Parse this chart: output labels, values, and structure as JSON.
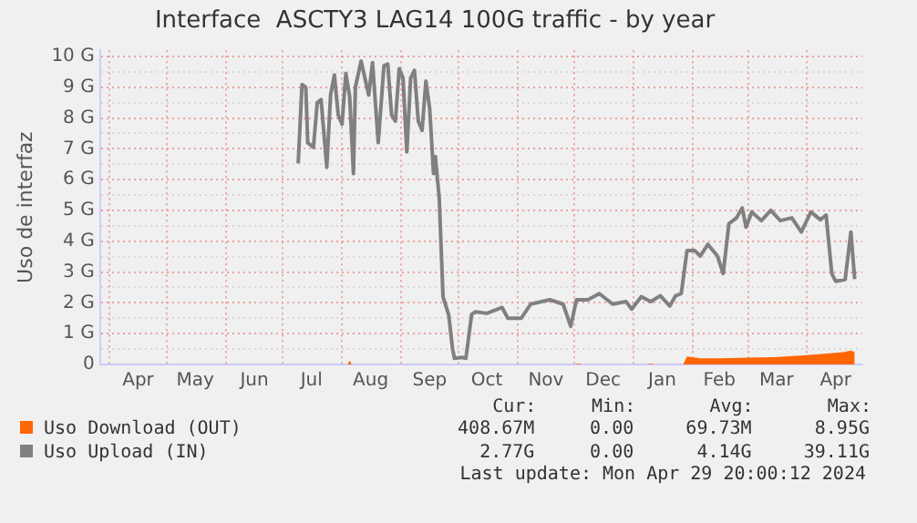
{
  "chart_data": {
    "type": "line",
    "title": "Interface  ASCTY3 LAG14 100G traffic - by year",
    "ylabel": "Uso de interfaz",
    "xlim": [
      "2023-03-27",
      "2024-04-30"
    ],
    "xticks": [
      {
        "value": "2023-04-01",
        "label": null
      },
      {
        "value": "2023-04-16",
        "label": "Apr"
      },
      {
        "value": "2023-05-01",
        "label": null
      },
      {
        "value": "2023-05-16",
        "label": "May"
      },
      {
        "value": "2023-06-01",
        "label": null
      },
      {
        "value": "2023-06-16",
        "label": "Jun"
      },
      {
        "value": "2023-07-01",
        "label": null
      },
      {
        "value": "2023-07-16",
        "label": "Jul"
      },
      {
        "value": "2023-08-01",
        "label": null
      },
      {
        "value": "2023-08-16",
        "label": "Aug"
      },
      {
        "value": "2023-09-01",
        "label": null
      },
      {
        "value": "2023-09-16",
        "label": "Sep"
      },
      {
        "value": "2023-10-01",
        "label": null
      },
      {
        "value": "2023-10-16",
        "label": "Oct"
      },
      {
        "value": "2023-11-01",
        "label": null
      },
      {
        "value": "2023-11-16",
        "label": "Nov"
      },
      {
        "value": "2023-12-01",
        "label": null
      },
      {
        "value": "2023-12-16",
        "label": "Dec"
      },
      {
        "value": "2024-01-01",
        "label": null
      },
      {
        "value": "2024-01-16",
        "label": "Jan"
      },
      {
        "value": "2024-02-01",
        "label": null
      },
      {
        "value": "2024-02-15",
        "label": "Feb"
      },
      {
        "value": "2024-03-01",
        "label": null
      },
      {
        "value": "2024-03-16",
        "label": "Mar"
      },
      {
        "value": "2024-04-01",
        "label": null
      },
      {
        "value": "2024-04-16",
        "label": "Apr"
      }
    ],
    "ylim": [
      0,
      10.2
    ],
    "yticks": [
      0,
      {
        "value": 0.5,
        "label": null
      },
      {
        "value": 1,
        "label": "1 G"
      },
      {
        "value": 1.5,
        "label": null
      },
      {
        "value": 2,
        "label": "2 G"
      },
      {
        "value": 2.5,
        "label": null
      },
      {
        "value": 3,
        "label": "3 G"
      },
      {
        "value": 3.5,
        "label": null
      },
      {
        "value": 4,
        "label": "4 G"
      },
      {
        "value": 4.5,
        "label": null
      },
      {
        "value": 5,
        "label": "5 G"
      },
      {
        "value": 5.5,
        "label": null
      },
      {
        "value": 6,
        "label": "6 G"
      },
      {
        "value": 6.5,
        "label": null
      },
      {
        "value": 7,
        "label": "7 G"
      },
      {
        "value": 7.5,
        "label": null
      },
      {
        "value": 8,
        "label": "8 G"
      },
      {
        "value": 8.5,
        "label": null
      },
      {
        "value": 9,
        "label": "9 G"
      },
      {
        "value": 9.5,
        "label": null
      },
      {
        "value": 10,
        "label": "10 G"
      }
    ],
    "grid": true,
    "legend": "bottom",
    "marker": "none",
    "series": [
      {
        "name": "Uso Download (OUT)",
        "type": "area",
        "color": "#ff6600",
        "x": [
          "2023-07-09",
          "2023-08-04",
          "2023-08-05",
          "2023-08-06",
          "2023-12-01",
          "2023-12-03",
          "2023-12-05",
          "2024-01-08",
          "2024-01-10",
          "2024-01-12",
          "2024-01-27",
          "2024-01-29",
          "2024-02-05",
          "2024-02-15",
          "2024-03-01",
          "2024-03-15",
          "2024-04-01",
          "2024-04-10",
          "2024-04-20",
          "2024-04-24",
          "2024-04-26"
        ],
        "values": [
          0,
          0,
          0.13,
          0,
          0,
          0.03,
          0,
          0,
          0.03,
          0,
          0,
          0.26,
          0.2,
          0.2,
          0.22,
          0.24,
          0.3,
          0.35,
          0.4,
          0.45,
          0.41
        ]
      },
      {
        "name": "Uso Upload (IN)",
        "type": "line",
        "color": "#808080",
        "x": [
          "2023-07-09",
          "2023-07-11",
          "2023-07-13",
          "2023-07-14",
          "2023-07-17",
          "2023-07-19",
          "2023-07-21",
          "2023-07-24",
          "2023-07-26",
          "2023-07-28",
          "2023-07-30",
          "2023-08-01",
          "2023-08-03",
          "2023-08-05",
          "2023-08-07",
          "2023-08-08",
          "2023-08-11",
          "2023-08-15",
          "2023-08-17",
          "2023-08-20",
          "2023-08-23",
          "2023-08-25",
          "2023-08-27",
          "2023-08-29",
          "2023-08-31",
          "2023-09-02",
          "2023-09-04",
          "2023-09-06",
          "2023-09-08",
          "2023-09-10",
          "2023-09-12",
          "2023-09-14",
          "2023-09-16",
          "2023-09-18",
          "2023-09-19",
          "2023-09-21",
          "2023-09-23",
          "2023-09-26",
          "2023-09-28",
          "2023-09-29",
          "2023-10-03",
          "2023-10-05",
          "2023-10-08",
          "2023-10-10",
          "2023-10-16",
          "2023-10-24",
          "2023-10-27",
          "2023-11-03",
          "2023-11-08",
          "2023-11-18",
          "2023-11-25",
          "2023-11-29",
          "2023-12-02",
          "2023-12-08",
          "2023-12-14",
          "2023-12-21",
          "2023-12-28",
          "2023-12-31",
          "2024-01-05",
          "2024-01-10",
          "2024-01-15",
          "2024-01-20",
          "2024-01-23",
          "2024-01-26",
          "2024-01-29",
          "2024-02-02",
          "2024-02-05",
          "2024-02-09",
          "2024-02-14",
          "2024-02-17",
          "2024-02-20",
          "2024-02-24",
          "2024-02-27",
          "2024-02-29",
          "2024-03-03",
          "2024-03-08",
          "2024-03-13",
          "2024-03-18",
          "2024-03-24",
          "2024-03-29",
          "2024-04-03",
          "2024-04-08",
          "2024-04-11",
          "2024-04-14",
          "2024-04-16",
          "2024-04-21",
          "2024-04-24",
          "2024-04-26"
        ],
        "values": [
          6.53,
          9.09,
          9.0,
          7.2,
          7.05,
          8.5,
          8.6,
          6.4,
          8.75,
          9.4,
          8.1,
          7.8,
          9.45,
          8.7,
          6.2,
          9.0,
          9.85,
          8.75,
          9.8,
          7.2,
          9.7,
          9.75,
          8.1,
          7.9,
          9.6,
          9.3,
          6.9,
          9.3,
          9.55,
          7.9,
          7.6,
          9.2,
          8.3,
          6.2,
          6.75,
          5.4,
          2.2,
          1.6,
          0.5,
          0.2,
          0.23,
          0.2,
          1.62,
          1.71,
          1.66,
          1.85,
          1.5,
          1.5,
          1.96,
          2.1,
          1.96,
          1.24,
          2.1,
          2.1,
          2.3,
          1.96,
          2.04,
          1.8,
          2.2,
          2.04,
          2.23,
          1.9,
          2.23,
          2.3,
          3.7,
          3.7,
          3.52,
          3.9,
          3.52,
          2.95,
          4.57,
          4.76,
          5.08,
          4.46,
          4.95,
          4.67,
          5.0,
          4.67,
          4.76,
          4.3,
          4.95,
          4.7,
          4.85,
          2.95,
          2.7,
          2.76,
          4.3,
          2.77
        ]
      }
    ],
    "annotations": [
      "Cur:",
      "Min:",
      "Avg:",
      "Max:",
      "408.67M",
      "0.00",
      "69.73M",
      "8.95G",
      "2.77G",
      "0.00",
      "4.14G",
      "39.11G",
      "Last update: Mon Apr 29 20:00:12 2024"
    ]
  }
}
